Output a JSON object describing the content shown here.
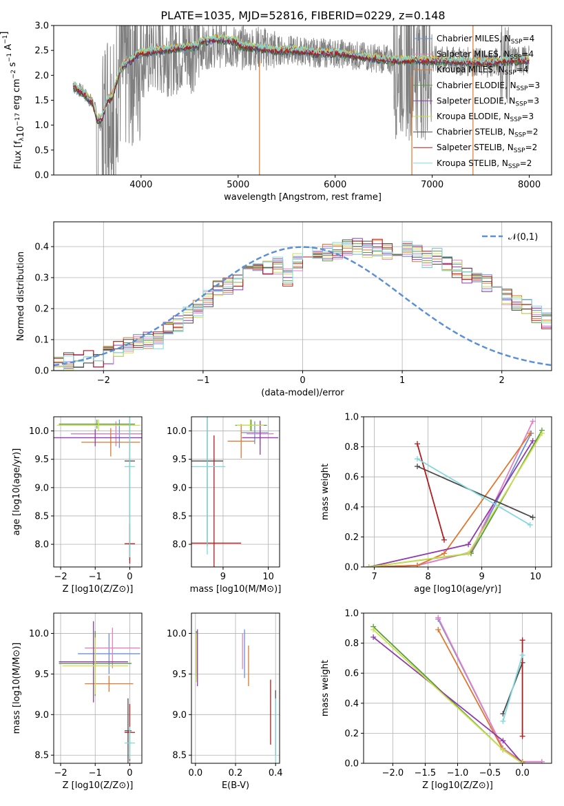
{
  "figure": {
    "title": "PLATE=1035, MJD=52816, FIBERID=0229, z=0.148"
  },
  "series_styles": [
    {
      "name": "Chabrier MILES, N_SSP=4",
      "label_main": "Chabrier MILES, N",
      "label_sub": "SSP",
      "label_tail": "=4",
      "color": "#6b8fd6"
    },
    {
      "name": "Salpeter MILES, N_SSP=4",
      "label_main": "Salpeter MILES, N",
      "label_sub": "SSP",
      "label_tail": "=4",
      "color": "#e57fc4"
    },
    {
      "name": "Kroupa MILES, N_SSP=4",
      "label_main": "Kroupa MILES, N",
      "label_sub": "SSP",
      "label_tail": "=4",
      "color": "#e0762b"
    },
    {
      "name": "Chabrier ELODIE, N_SSP=3",
      "label_main": "Chabrier ELODIE, N",
      "label_sub": "SSP",
      "label_tail": "=3",
      "color": "#5a9a3c"
    },
    {
      "name": "Salpeter ELODIE, N_SSP=3",
      "label_main": "Salpeter ELODIE, N",
      "label_sub": "SSP",
      "label_tail": "=3",
      "color": "#8e3aad"
    },
    {
      "name": "Kroupa ELODIE, N_SSP=3",
      "label_main": "Kroupa ELODIE, N",
      "label_sub": "SSP",
      "label_tail": "=3",
      "color": "#c8e04b"
    },
    {
      "name": "Chabrier STELIB, N_SSP=2",
      "label_main": "Chabrier STELIB, N",
      "label_sub": "SSP",
      "label_tail": "=2",
      "color": "#4a4a4a"
    },
    {
      "name": "Salpeter STELIB, N_SSP=2",
      "label_main": "Salpeter STELIB, N",
      "label_sub": "SSP",
      "label_tail": "=2",
      "color": "#b01a1a"
    },
    {
      "name": "Kroupa STELIB, N_SSP=2",
      "label_main": "Kroupa STELIB, N",
      "label_sub": "SSP",
      "label_tail": "=2",
      "color": "#7fd8dc"
    }
  ],
  "chart_data": [
    {
      "id": "spectrum",
      "type": "line",
      "title": "PLATE=1035, MJD=52816, FIBERID=0229, z=0.148",
      "xlabel": "wavelength [Angstrom, rest frame]",
      "ylabel_parts": [
        "Flux [f",
        "λ",
        "10",
        "−17",
        " erg cm",
        "−2",
        " s",
        "−1",
        " A",
        "−1",
        "]"
      ],
      "xlim": [
        3100,
        8230
      ],
      "ylim": [
        0,
        3.0
      ],
      "xticks": [
        4000,
        5000,
        6000,
        7000,
        8000
      ],
      "yticks": [
        0.0,
        0.5,
        1.0,
        1.5,
        2.0,
        2.5,
        3.0
      ],
      "observed_color": "#808080",
      "observed_points": [
        [
          3300,
          1.78
        ],
        [
          3350,
          1.72
        ],
        [
          3400,
          1.66
        ],
        [
          3450,
          1.55
        ],
        [
          3500,
          1.45
        ],
        [
          3550,
          1.2
        ],
        [
          3600,
          0.9
        ],
        [
          3650,
          1.4
        ],
        [
          3700,
          1.6
        ],
        [
          3750,
          1.9
        ],
        [
          3800,
          2.1
        ],
        [
          3850,
          2.2
        ],
        [
          3900,
          2.3
        ],
        [
          3950,
          2.35
        ],
        [
          4000,
          2.4
        ],
        [
          4200,
          2.45
        ],
        [
          4400,
          2.5
        ],
        [
          4600,
          2.55
        ],
        [
          4800,
          2.6
        ],
        [
          5000,
          2.55
        ],
        [
          5200,
          2.55
        ],
        [
          5400,
          2.5
        ],
        [
          5600,
          2.5
        ],
        [
          5800,
          2.45
        ],
        [
          6000,
          2.45
        ],
        [
          6200,
          2.4
        ],
        [
          6400,
          2.35
        ],
        [
          6600,
          2.3
        ],
        [
          6800,
          2.28
        ],
        [
          7000,
          2.3
        ],
        [
          7200,
          2.28
        ],
        [
          7400,
          2.27
        ],
        [
          7600,
          2.25
        ],
        [
          7800,
          2.3
        ],
        [
          8000,
          2.3
        ]
      ],
      "model_points": [
        [
          3300,
          1.8
        ],
        [
          3350,
          1.72
        ],
        [
          3400,
          1.65
        ],
        [
          3450,
          1.55
        ],
        [
          3500,
          1.45
        ],
        [
          3550,
          1.1
        ],
        [
          3600,
          1.15
        ],
        [
          3650,
          1.5
        ],
        [
          3700,
          1.55
        ],
        [
          3750,
          1.9
        ],
        [
          3800,
          2.15
        ],
        [
          3850,
          2.25
        ],
        [
          3900,
          2.3
        ],
        [
          3950,
          2.4
        ],
        [
          4000,
          2.45
        ],
        [
          4200,
          2.5
        ],
        [
          4400,
          2.55
        ],
        [
          4600,
          2.6
        ],
        [
          4800,
          2.65
        ],
        [
          5000,
          2.6
        ],
        [
          5200,
          2.55
        ],
        [
          5400,
          2.5
        ],
        [
          5600,
          2.5
        ],
        [
          5800,
          2.45
        ],
        [
          6000,
          2.45
        ],
        [
          6200,
          2.4
        ],
        [
          6400,
          2.35
        ],
        [
          6600,
          2.3
        ],
        [
          6800,
          2.3
        ],
        [
          7000,
          2.3
        ],
        [
          7200,
          2.28
        ],
        [
          7400,
          2.27
        ],
        [
          7600,
          2.25
        ],
        [
          7800,
          2.3
        ],
        [
          8000,
          2.3
        ]
      ]
    },
    {
      "id": "residuals",
      "type": "histogram",
      "xlabel": "(data-model)/error",
      "ylabel": "Normed distribution",
      "xlim": [
        -2.5,
        2.5
      ],
      "ylim": [
        0,
        0.48
      ],
      "xticks": [
        -2,
        -1,
        0,
        1,
        2
      ],
      "yticks": [
        0.0,
        0.1,
        0.2,
        0.3,
        0.4
      ],
      "legend_label": "𝒩(0,1)",
      "normal_color": "#5b8fd6",
      "bin_edges_start": -2.5,
      "bin_width": 0.1,
      "hist_values": [
        0.02,
        0.03,
        0.03,
        0.04,
        0.04,
        0.05,
        0.07,
        0.08,
        0.09,
        0.1,
        0.1,
        0.14,
        0.15,
        0.18,
        0.2,
        0.23,
        0.26,
        0.27,
        0.28,
        0.31,
        0.33,
        0.33,
        0.34,
        0.3,
        0.35,
        0.38,
        0.37,
        0.38,
        0.39,
        0.4,
        0.4,
        0.39,
        0.4,
        0.38,
        0.37,
        0.39,
        0.38,
        0.36,
        0.37,
        0.35,
        0.33,
        0.31,
        0.29,
        0.28,
        0.27,
        0.24,
        0.22,
        0.2,
        0.18,
        0.16
      ]
    },
    {
      "id": "age_vs_Z",
      "type": "scatter",
      "xlabel": "Z [log10(Z/Z⊙)]",
      "ylabel": "age  [log10(age/yr)]",
      "xlim": [
        -2.2,
        0.35
      ],
      "ylim": [
        7.6,
        10.25
      ],
      "xticks": [
        -2,
        -1,
        0
      ],
      "yticks": [
        8.0,
        8.5,
        9.0,
        9.5,
        10.0
      ],
      "points": [
        {
          "s": 0,
          "x": -0.3,
          "y": 9.95,
          "ex": 1.4,
          "ey": 0.25
        },
        {
          "s": 1,
          "x": -0.4,
          "y": 9.95,
          "ex": 1.3,
          "ey": 0.22
        },
        {
          "s": 2,
          "x": -0.55,
          "y": 9.8,
          "ex": 0.85,
          "ey": 0.25
        },
        {
          "s": 3,
          "x": -0.95,
          "y": 10.12,
          "ex": 1.1,
          "ey": 0.08
        },
        {
          "s": 4,
          "x": -1.0,
          "y": 9.88,
          "ex": 1.4,
          "ey": 0.15
        },
        {
          "s": 5,
          "x": -0.9,
          "y": 10.1,
          "ex": 1.2,
          "ey": 0.1
        },
        {
          "s": 6,
          "x": 0.0,
          "y": 9.47,
          "ex": 0.15,
          "ey": 1.75
        },
        {
          "s": 7,
          "x": 0.0,
          "y": 8.01,
          "ex": 0.15,
          "ey": 0.35
        },
        {
          "s": 8,
          "x": 0.0,
          "y": 9.37,
          "ex": 0.15,
          "ey": 1.6
        }
      ]
    },
    {
      "id": "age_vs_mass",
      "type": "scatter",
      "xlabel": "mass [log10(M/M⊙)]",
      "ylabel": "",
      "xlim": [
        8.3,
        10.25
      ],
      "ylim": [
        7.6,
        10.25
      ],
      "xticks": [
        9,
        10
      ],
      "yticks": [
        8.0,
        8.5,
        9.0,
        9.5,
        10.0
      ],
      "points": [
        {
          "s": 0,
          "x": 9.7,
          "y": 9.97,
          "ex": 0.3,
          "ey": 0.2
        },
        {
          "s": 1,
          "x": 9.82,
          "y": 9.95,
          "ex": 0.3,
          "ey": 0.2
        },
        {
          "s": 2,
          "x": 9.4,
          "y": 9.82,
          "ex": 0.3,
          "ey": 0.3
        },
        {
          "s": 3,
          "x": 9.62,
          "y": 10.1,
          "ex": 0.35,
          "ey": 0.1
        },
        {
          "s": 4,
          "x": 9.82,
          "y": 9.88,
          "ex": 0.4,
          "ey": 0.3
        },
        {
          "s": 5,
          "x": 9.6,
          "y": 10.1,
          "ex": 0.3,
          "ey": 0.1
        },
        {
          "s": 6,
          "x": 8.65,
          "y": 9.47,
          "ex": 0.35,
          "ey": 1.5
        },
        {
          "s": 7,
          "x": 8.8,
          "y": 8.02,
          "ex": 0.6,
          "ey": 1.9
        },
        {
          "s": 8,
          "x": 8.65,
          "y": 9.37,
          "ex": 0.4,
          "ey": 1.55
        }
      ]
    },
    {
      "id": "massweight_vs_age",
      "type": "line",
      "xlabel": "age  [log10(age/yr)]",
      "ylabel": "mass weight",
      "xlim": [
        6.8,
        10.3
      ],
      "ylim": [
        0,
        1.0
      ],
      "xticks": [
        7,
        8,
        9,
        10
      ],
      "yticks": [
        0.0,
        0.2,
        0.4,
        0.6,
        0.8,
        1.0
      ],
      "series": [
        {
          "s": 0,
          "x": [
            6.9,
            7.8,
            8.8,
            9.92
          ],
          "y": [
            0.0,
            0.01,
            0.1,
            0.89
          ]
        },
        {
          "s": 1,
          "x": [
            6.9,
            7.8,
            8.8,
            9.95
          ],
          "y": [
            0.0,
            0.01,
            0.1,
            0.97
          ]
        },
        {
          "s": 2,
          "x": [
            6.9,
            7.8,
            8.3,
            9.9
          ],
          "y": [
            0.0,
            0.01,
            0.09,
            0.89
          ]
        },
        {
          "s": 3,
          "x": [
            6.9,
            8.8,
            10.12
          ],
          "y": [
            0.0,
            0.09,
            0.91
          ]
        },
        {
          "s": 4,
          "x": [
            6.9,
            8.75,
            9.95
          ],
          "y": [
            0.0,
            0.15,
            0.84
          ]
        },
        {
          "s": 5,
          "x": [
            6.9,
            8.75,
            10.12
          ],
          "y": [
            0.0,
            0.09,
            0.89
          ]
        },
        {
          "s": 6,
          "x": [
            7.8,
            9.95
          ],
          "y": [
            0.67,
            0.33
          ]
        },
        {
          "s": 7,
          "x": [
            7.8,
            8.3
          ],
          "y": [
            0.82,
            0.18
          ]
        },
        {
          "s": 8,
          "x": [
            7.8,
            9.9
          ],
          "y": [
            0.72,
            0.28
          ]
        }
      ]
    },
    {
      "id": "mass_vs_Z",
      "type": "scatter",
      "xlabel": "Z [log10(Z/Z⊙)]",
      "ylabel": "mass [log10(M/M⊙)]",
      "xlim": [
        -2.2,
        0.35
      ],
      "ylim": [
        8.4,
        10.25
      ],
      "xticks": [
        -2,
        -1,
        0
      ],
      "yticks": [
        8.5,
        9.0,
        9.5,
        10.0
      ],
      "points": [
        {
          "s": 0,
          "x": -0.6,
          "y": 9.75,
          "ex": 0.9,
          "ey": 0.25
        },
        {
          "s": 1,
          "x": -0.5,
          "y": 9.82,
          "ex": 0.8,
          "ey": 0.25
        },
        {
          "s": 2,
          "x": -0.6,
          "y": 9.38,
          "ex": 0.7,
          "ey": 0.1
        },
        {
          "s": 3,
          "x": -1.0,
          "y": 9.63,
          "ex": 1.05,
          "ey": 0.4
        },
        {
          "s": 4,
          "x": -1.05,
          "y": 9.65,
          "ex": 1.0,
          "ey": 0.5
        },
        {
          "s": 5,
          "x": -1.0,
          "y": 9.6,
          "ex": 0.95,
          "ey": 0.35
        },
        {
          "s": 6,
          "x": -0.05,
          "y": 8.8,
          "ex": 0.1,
          "ey": 0.4
        },
        {
          "s": 7,
          "x": 0.0,
          "y": 8.78,
          "ex": 0.15,
          "ey": 0.35
        },
        {
          "s": 8,
          "x": 0.0,
          "y": 8.65,
          "ex": 0.15,
          "ey": 0.2
        }
      ]
    },
    {
      "id": "mass_vs_EBV",
      "type": "scatter",
      "xlabel": "E(B-V)",
      "ylabel": "",
      "xlim": [
        -0.02,
        0.42
      ],
      "ylim": [
        8.4,
        10.25
      ],
      "xticks": [
        0.0,
        0.2,
        0.4
      ],
      "yticks": [
        8.5,
        9.0,
        9.5,
        10.0
      ],
      "points": [
        {
          "s": 0,
          "x": 0.245,
          "y": 9.75,
          "ex": 0,
          "ey": 0.3
        },
        {
          "s": 1,
          "x": 0.235,
          "y": 9.78,
          "ex": 0,
          "ey": 0.22
        },
        {
          "s": 2,
          "x": 0.265,
          "y": 9.6,
          "ex": 0,
          "ey": 0.25
        },
        {
          "s": 3,
          "x": 0.005,
          "y": 9.75,
          "ex": 0,
          "ey": 0.28
        },
        {
          "s": 4,
          "x": 0.01,
          "y": 9.7,
          "ex": 0,
          "ey": 0.35
        },
        {
          "s": 5,
          "x": 0.005,
          "y": 9.7,
          "ex": 0,
          "ey": 0.3
        },
        {
          "s": 6,
          "x": 0.4,
          "y": 8.9,
          "ex": 0,
          "ey": 0.4
        },
        {
          "s": 7,
          "x": 0.375,
          "y": 9.03,
          "ex": 0,
          "ey": 0.4
        },
        {
          "s": 8,
          "x": 0.4,
          "y": 8.8,
          "ex": 0,
          "ey": 0.4
        }
      ]
    },
    {
      "id": "massweight_vs_Z",
      "type": "line",
      "xlabel": "Z [log10(Z/Z⊙)]",
      "ylabel": "mass weight",
      "xlim": [
        -2.45,
        0.45
      ],
      "ylim": [
        0,
        1.0
      ],
      "xticks": [
        -2.0,
        -1.5,
        -1.0,
        -0.5,
        0.0
      ],
      "yticks": [
        0.0,
        0.2,
        0.4,
        0.6,
        0.8,
        1.0
      ],
      "series": [
        {
          "s": 0,
          "x": [
            -1.3,
            -0.3,
            0.0,
            0.3
          ],
          "y": [
            0.96,
            0.1,
            0.01,
            0.01
          ]
        },
        {
          "s": 1,
          "x": [
            -1.3,
            -0.3,
            0.0,
            0.3
          ],
          "y": [
            0.97,
            0.1,
            0.01,
            0.01
          ]
        },
        {
          "s": 2,
          "x": [
            -1.3,
            -0.3,
            0.0
          ],
          "y": [
            0.89,
            0.09,
            0.01
          ]
        },
        {
          "s": 3,
          "x": [
            -2.3,
            -0.3,
            0.0
          ],
          "y": [
            0.91,
            0.09,
            0.0
          ]
        },
        {
          "s": 4,
          "x": [
            -2.3,
            -0.3,
            0.0
          ],
          "y": [
            0.84,
            0.15,
            0.0
          ]
        },
        {
          "s": 5,
          "x": [
            -2.3,
            -0.3,
            0.0
          ],
          "y": [
            0.89,
            0.09,
            0.0
          ]
        },
        {
          "s": 6,
          "x": [
            -0.3,
            0.0
          ],
          "y": [
            0.33,
            0.67
          ]
        },
        {
          "s": 7,
          "x": [
            0.0,
            0.0
          ],
          "y": [
            0.18,
            0.82
          ]
        },
        {
          "s": 8,
          "x": [
            -0.3,
            0.0
          ],
          "y": [
            0.28,
            0.72
          ]
        }
      ]
    }
  ]
}
